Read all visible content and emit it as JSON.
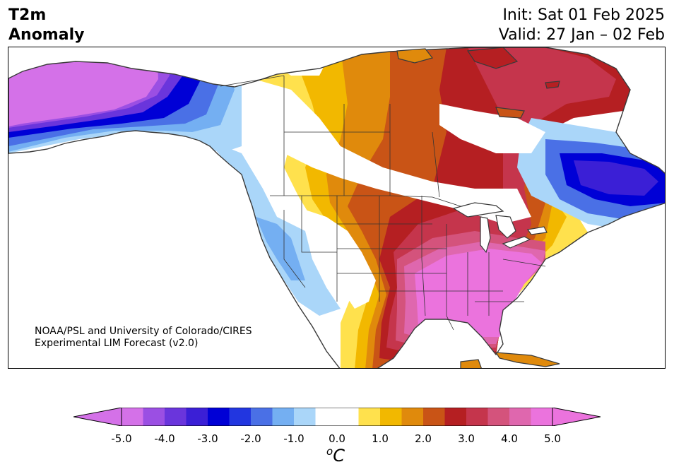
{
  "title": {
    "left_line1": "T2m",
    "left_line2": "Anomaly",
    "init": "Init: Sat 01 Feb 2025",
    "valid": "Valid: 27 Jan – 02 Feb"
  },
  "credit": {
    "line1": "NOAA/PSL and University of Colorado/CIRES",
    "line2": "Experimental LIM Forecast (v2.0)"
  },
  "colorbar": {
    "ticks": [
      "-5.0",
      "-4.0",
      "-3.0",
      "-2.0",
      "-1.0",
      "0.0",
      "1.0",
      "2.0",
      "3.0",
      "4.0",
      "5.0"
    ],
    "unit_sup": "o",
    "unit": "C",
    "colors": [
      "#d471e8",
      "#9b4fe3",
      "#6a35dc",
      "#3b1fd6",
      "#0000d6",
      "#2236e0",
      "#4a70e6",
      "#74aff2",
      "#aad6f9",
      "#ffffff",
      "#ffffff",
      "#ffe14d",
      "#f2b800",
      "#e08a0c",
      "#c95416",
      "#b51f22",
      "#c5354c",
      "#d4537c",
      "#df67ae",
      "#eb73dd"
    ]
  },
  "map": {
    "colors": {
      "land": "#ffffff",
      "ocean": "#ffffff",
      "coast": "#3a3a3a",
      "border": "#333333"
    }
  }
}
